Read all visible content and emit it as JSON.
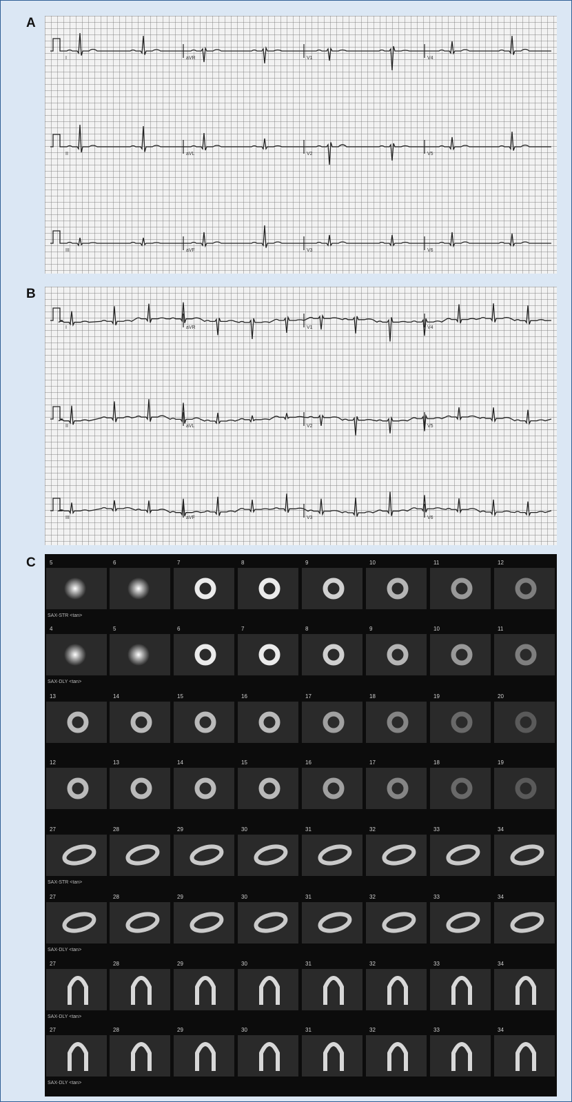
{
  "panels": {
    "a": {
      "label": "A",
      "leads": [
        [
          "I",
          "aVR",
          "V1",
          "V4"
        ],
        [
          "II",
          "aVL",
          "V2",
          "V5"
        ],
        [
          "III",
          "aVF",
          "V3",
          "V6"
        ]
      ]
    },
    "b": {
      "label": "B",
      "leads": [
        [
          "I",
          "aVR",
          "V1",
          "V4"
        ],
        [
          "II",
          "aVL",
          "V2",
          "V5"
        ],
        [
          "III",
          "aVF",
          "V3",
          "V6"
        ]
      ]
    },
    "c": {
      "label": "C",
      "rows": [
        {
          "numbers": [
            "5",
            "6",
            "7",
            "8",
            "9",
            "10",
            "11",
            "12"
          ],
          "view": "short",
          "caption": "SAX-STR <tan>"
        },
        {
          "numbers": [
            "4",
            "5",
            "6",
            "7",
            "8",
            "9",
            "10",
            "11"
          ],
          "view": "short",
          "caption": "SAX-DLY <tan>"
        },
        {
          "numbers": [
            "13",
            "14",
            "15",
            "16",
            "17",
            "18",
            "19",
            "20"
          ],
          "view": "short",
          "caption": ""
        },
        {
          "numbers": [
            "12",
            "13",
            "14",
            "15",
            "16",
            "17",
            "18",
            "19"
          ],
          "view": "short",
          "caption": ""
        },
        {
          "numbers": [
            "27",
            "28",
            "29",
            "30",
            "31",
            "32",
            "33",
            "34"
          ],
          "view": "horizontal",
          "caption": "SAX-STR <tan>"
        },
        {
          "numbers": [
            "27",
            "28",
            "29",
            "30",
            "31",
            "32",
            "33",
            "34"
          ],
          "view": "horizontal",
          "caption": "SAX-DLY <tan>"
        },
        {
          "numbers": [
            "27",
            "28",
            "29",
            "30",
            "31",
            "32",
            "33",
            "34"
          ],
          "view": "vertical",
          "caption": "SAX-DLY <tan>"
        },
        {
          "numbers": [
            "27",
            "28",
            "29",
            "30",
            "31",
            "32",
            "33",
            "34"
          ],
          "view": "vertical",
          "caption": "SAX-DLY <tan>"
        }
      ]
    }
  }
}
